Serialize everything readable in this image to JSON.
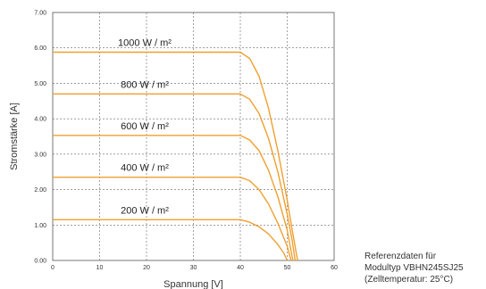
{
  "chart_data": {
    "type": "line",
    "xlabel": "Spannung [V]",
    "ylabel": "Stromstärke [A]",
    "xlim": [
      0,
      60
    ],
    "ylim": [
      0,
      7
    ],
    "x_ticks": [
      "0",
      "10",
      "20",
      "30",
      "40",
      "50",
      "60"
    ],
    "y_ticks": [
      "0.00",
      "1.00",
      "2.00",
      "3.00",
      "4.00",
      "5.00",
      "6.00",
      "7.00"
    ],
    "grid": true,
    "line_color": "#f0a030",
    "series": [
      {
        "name": "1000 W / m²",
        "x": [
          0,
          40,
          42,
          44,
          46,
          48,
          50,
          51,
          52.2
        ],
        "y": [
          5.88,
          5.88,
          5.7,
          5.2,
          4.3,
          3.1,
          1.7,
          0.9,
          0
        ]
      },
      {
        "name": "800 W / m²",
        "x": [
          0,
          40,
          42,
          44,
          46,
          48,
          50,
          51,
          51.7
        ],
        "y": [
          4.7,
          4.7,
          4.55,
          4.15,
          3.45,
          2.5,
          1.3,
          0.6,
          0
        ]
      },
      {
        "name": "600 W / m²",
        "x": [
          0,
          40,
          42,
          44,
          46,
          48,
          50,
          51.2
        ],
        "y": [
          3.53,
          3.53,
          3.4,
          3.1,
          2.55,
          1.8,
          0.85,
          0
        ]
      },
      {
        "name": "400 W / m²",
        "x": [
          0,
          40,
          42,
          44,
          46,
          48,
          50,
          50.8
        ],
        "y": [
          2.35,
          2.35,
          2.25,
          2.0,
          1.6,
          1.05,
          0.4,
          0
        ]
      },
      {
        "name": "200 W / m²",
        "x": [
          0,
          40,
          42,
          44,
          46,
          48,
          49.3,
          50
        ],
        "y": [
          1.15,
          1.15,
          1.08,
          0.95,
          0.75,
          0.45,
          0.2,
          0
        ]
      }
    ]
  },
  "note": {
    "line1": "Referenzdaten für",
    "line2": "Modultyp VBHN245SJ25",
    "line3": "(Zelltemperatur: 25°C)"
  }
}
